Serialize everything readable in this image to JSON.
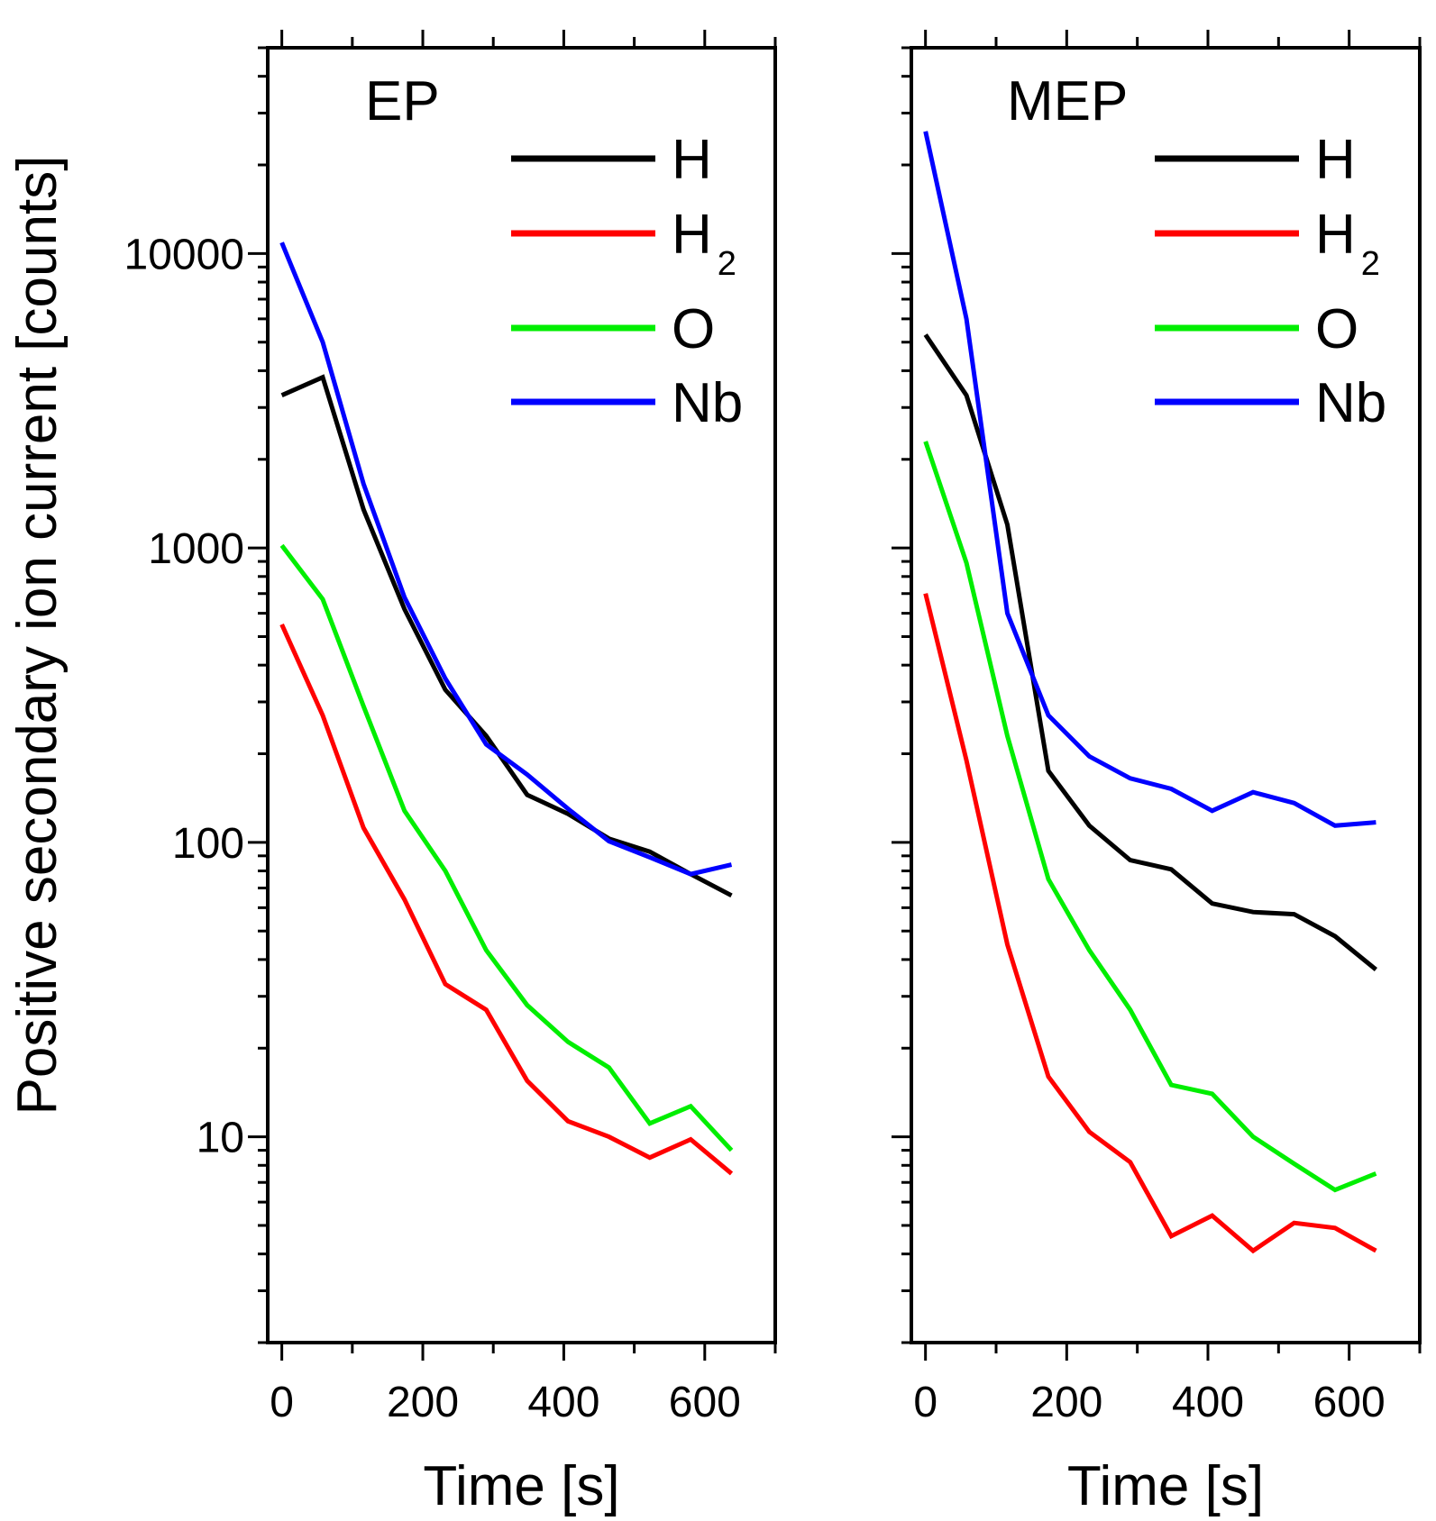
{
  "chart_data": {
    "type": "line",
    "ylabel": "Positive secondary ion current [counts]",
    "xlabel": "Time [s]",
    "xlim": [
      -20,
      700
    ],
    "ylim": [
      2,
      50000
    ],
    "yscale": "log",
    "x_ticks": [
      0,
      200,
      400,
      600
    ],
    "y_tick_labels": [
      {
        "value": 10,
        "label": "10"
      },
      {
        "value": 100,
        "label": "100"
      },
      {
        "value": 1000,
        "label": "1000"
      },
      {
        "value": 10000,
        "label": "10000"
      }
    ],
    "grid": false,
    "legend_position": "top-right",
    "series_colors": {
      "H": "#000000",
      "H2": "#ff0000",
      "O": "#00ee00",
      "Nb": "#0000ff"
    },
    "legend": [
      {
        "key": "H",
        "base": "H",
        "sub": ""
      },
      {
        "key": "H2",
        "base": "H",
        "sub": "2"
      },
      {
        "key": "O",
        "base": "O",
        "sub": ""
      },
      {
        "key": "Nb",
        "base": "Nb",
        "sub": ""
      }
    ],
    "x": [
      0,
      58,
      116,
      174,
      232,
      290,
      348,
      406,
      464,
      522,
      580,
      638
    ],
    "panels": [
      {
        "title": "EP",
        "series": [
          {
            "key": "H",
            "values": [
              3300,
              3800,
              1350,
              620,
              330,
              230,
              145,
              125,
              103,
              93,
              78,
              66
            ]
          },
          {
            "key": "H2",
            "values": [
              550,
              270,
              112,
              64,
              33,
              27,
              15.5,
              11.3,
              10,
              8.5,
              9.8,
              7.5
            ]
          },
          {
            "key": "O",
            "values": [
              1020,
              670,
              290,
              128,
              80,
              43,
              28,
              21,
              17.2,
              11.1,
              12.7,
              9
            ]
          },
          {
            "key": "Nb",
            "values": [
              10900,
              5000,
              1650,
              680,
              360,
              215,
              170,
              130,
              101,
              89,
              78,
              84
            ]
          }
        ]
      },
      {
        "title": "MEP",
        "series": [
          {
            "key": "H",
            "values": [
              5300,
              3300,
              1200,
              175,
              114,
              87,
              81,
              62,
              58,
              57,
              48,
              37
            ]
          },
          {
            "key": "H2",
            "values": [
              700,
              190,
              45,
              16,
              10.4,
              8.2,
              4.6,
              5.4,
              4.1,
              5.1,
              4.9,
              4.1
            ]
          },
          {
            "key": "O",
            "values": [
              2300,
              890,
              230,
              75,
              43,
              27,
              15,
              14,
              10,
              8.1,
              6.6,
              7.5
            ]
          },
          {
            "key": "Nb",
            "values": [
              26000,
              6000,
              600,
              270,
              196,
              165,
              152,
              128,
              148,
              136,
              114,
              117
            ]
          }
        ]
      }
    ]
  }
}
